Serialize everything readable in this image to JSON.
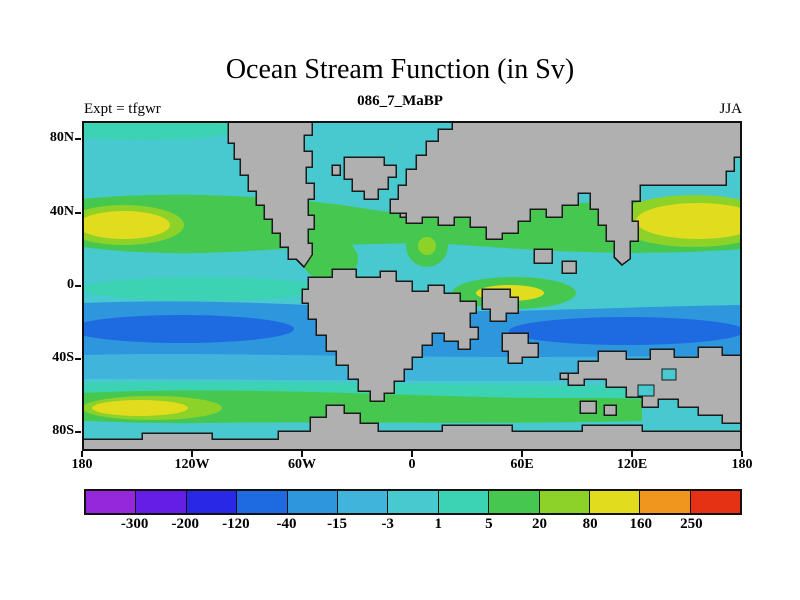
{
  "header": {
    "title": "Ocean Stream Function (in Sv)",
    "subtitle": "086_7_MaBP",
    "experiment_label": "Expt = tfgwr",
    "season_label": "JJA"
  },
  "chart_data": {
    "type": "heatmap",
    "title": "Ocean Stream Function (in Sv)",
    "subtitle": "086_7_MaBP",
    "experiment": "tfgwr",
    "season": "JJA",
    "units": "Sv",
    "projection": "global latitude-longitude map, paleogeography at 86.7 Ma",
    "xlim": [
      -180,
      180
    ],
    "ylim": [
      -90,
      90
    ],
    "xticks": [
      "180",
      "120W",
      "60W",
      "0",
      "60E",
      "120E",
      "180"
    ],
    "yticks": [
      "80N",
      "40N",
      "0",
      "40S",
      "80S"
    ],
    "grid": false,
    "legend_position": "bottom colorbar",
    "land_color": "#b0b0b0",
    "coast_outline_color": "#1a1a1a",
    "colorbar": {
      "levels": [
        "-300",
        "-200",
        "-120",
        "-40",
        "-15",
        "-3",
        "1",
        "5",
        "20",
        "80",
        "160",
        "250"
      ],
      "colors": [
        "#9628dc",
        "#641ee6",
        "#2828e6",
        "#1e6be1",
        "#2d96dc",
        "#41b4dc",
        "#48c8cf",
        "#3cd2b4",
        "#46c850",
        "#8cd228",
        "#e1dc1e",
        "#f0961e",
        "#e63214"
      ]
    },
    "field_summary": {
      "background_value_range": "-3 to 1 (cyan over most of the ocean)",
      "northern_midlatitude_band": "5 to 80 (green) with western/eastern boundary maxima 80-160 (yellow) near 30N at both map edges",
      "tethys_equatorial_patch": "5 to 160 (green with yellow core) east of the central continent",
      "southern_subtropical_band": "-40 to -15 (blue) with cores -120 to -40 (darker blue) between 20S and 50S",
      "southern_high_latitude_band": "5 to 160 (green with yellow patch near 60S at far west)"
    }
  }
}
